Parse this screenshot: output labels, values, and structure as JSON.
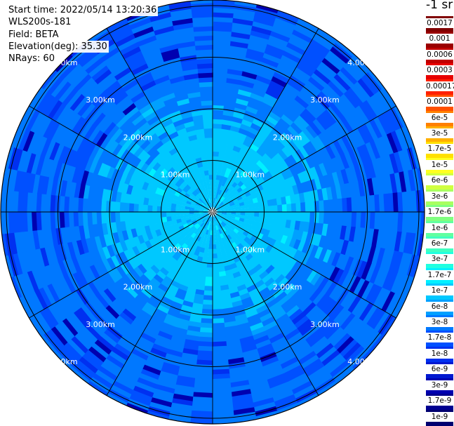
{
  "info": {
    "start_time": "Start time: 2022/05/14 13:20:36",
    "instrument": "WLS200s-181",
    "field": "Field: BETA",
    "elevation": "Elevation(deg): 35.30",
    "nrays": "NRays: 60"
  },
  "units": "-1 sr",
  "colors": {
    "background": "#ffffff",
    "grid": "#000000",
    "range_label": "#ffffff",
    "scan_core": "#1ef0e0",
    "scan_outer": "#1e8cff"
  },
  "colorbar": {
    "labels": [
      "0.0017",
      "0.001",
      "0.0006",
      "0.0003",
      "0.00017",
      "0.0001",
      "6e-5",
      "3e-5",
      "1.7e-5",
      "1e-5",
      "6e-6",
      "3e-6",
      "1.7e-6",
      "1e-6",
      "6e-7",
      "3e-7",
      "1.7e-7",
      "1e-7",
      "6e-8",
      "3e-8",
      "1.7e-8",
      "1e-8",
      "6e-9",
      "3e-9",
      "1.7e-9",
      "1e-9"
    ],
    "colors": [
      "#800000",
      "#9a0000",
      "#c00000",
      "#e80000",
      "#ff2000",
      "#ff5000",
      "#ff8000",
      "#ffb000",
      "#ffe000",
      "#ffff20",
      "#d0ff40",
      "#a8ff60",
      "#80ff80",
      "#60ffa0",
      "#40ffc0",
      "#20ffe0",
      "#00f0ff",
      "#00c8ff",
      "#00a0ff",
      "#0078ff",
      "#0050ff",
      "#0030f0",
      "#0018d0",
      "#0000b0",
      "#000090",
      "#000070"
    ]
  },
  "chart_data": {
    "type": "heatmap",
    "projection": "polar (PPI)",
    "field": "BETA",
    "n_rays": 60,
    "elevation_deg": 35.3,
    "range_rings_km": [
      1,
      2,
      3,
      4
    ],
    "range_labels": [
      "1.00km",
      "2.00km",
      "3.00km",
      "4.00km"
    ],
    "spoke_angles_deg": [
      0,
      30,
      60,
      90,
      120,
      150,
      180,
      210,
      240,
      270,
      300,
      330
    ],
    "value_scale": "log",
    "value_range": [
      1e-09,
      0.0017
    ],
    "typical_values": {
      "range_0_1.5km": "1e-7",
      "range_1.5_2.5km": "3e-8",
      "range_2.5_4.3km": "1.7e-8",
      "sparse_dark_bins": "3e-9"
    },
    "legend": "right"
  }
}
